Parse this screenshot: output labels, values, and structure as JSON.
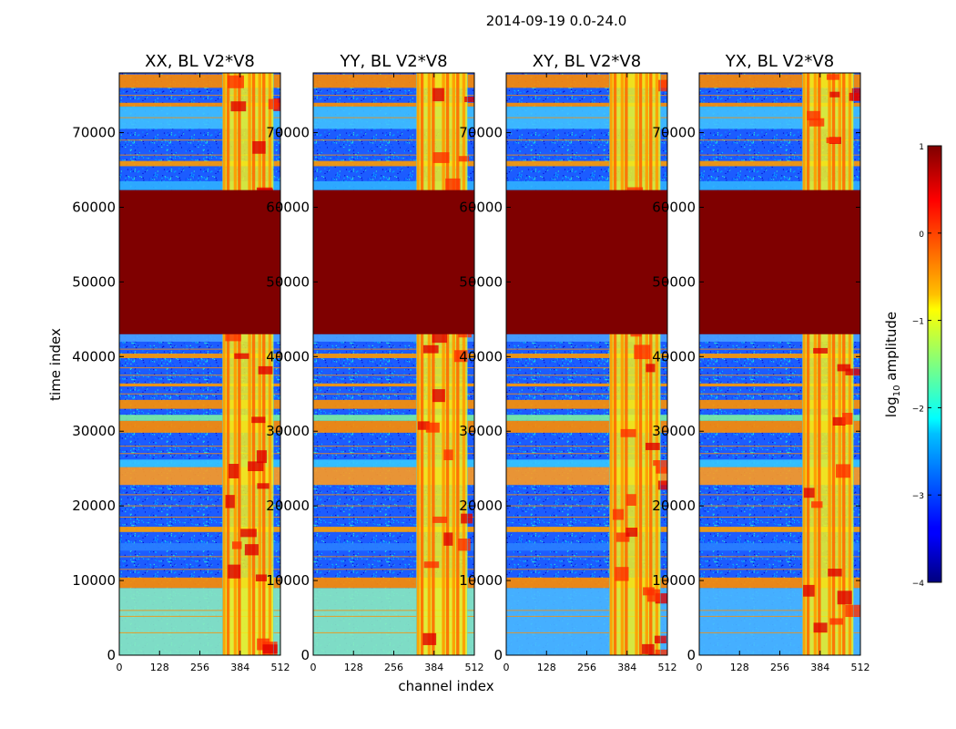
{
  "figure": {
    "title": "2014-09-19 0.0-24.0",
    "xlabel": "channel index",
    "ylabel": "time index"
  },
  "chart_data": {
    "type": "heatmap",
    "panels": [
      {
        "title": "XX, BL V2*V8",
        "pol": "XX"
      },
      {
        "title": "YY, BL V2*V8",
        "pol": "YY"
      },
      {
        "title": "XY, BL V2*V8",
        "pol": "XY"
      },
      {
        "title": "YX, BL V2*V8",
        "pol": "YX"
      }
    ],
    "xlim": [
      0,
      512
    ],
    "ylim": [
      0,
      78000
    ],
    "xticks": [
      0,
      128,
      256,
      384,
      512
    ],
    "xtick_labels": [
      "0",
      "128",
      "256",
      "384",
      "512"
    ],
    "yticks": [
      0,
      10000,
      20000,
      30000,
      40000,
      50000,
      60000,
      70000
    ],
    "ytick_labels": [
      "0",
      "10000",
      "20000",
      "30000",
      "40000",
      "50000",
      "60000",
      "70000"
    ],
    "saturated_time_range": [
      43000,
      62300
    ],
    "rfi_channel_range": [
      328,
      490
    ],
    "colorbar": {
      "label_prefix": "log",
      "label_sub": "10",
      "label_suffix": " amplitude",
      "range": [
        -4,
        1
      ],
      "ticks": [
        -4,
        -3,
        -2,
        -1,
        0,
        1
      ],
      "tick_labels": [
        "−4",
        "−3",
        "−2",
        "−1",
        "0",
        "1"
      ],
      "colormap": "jet"
    }
  }
}
